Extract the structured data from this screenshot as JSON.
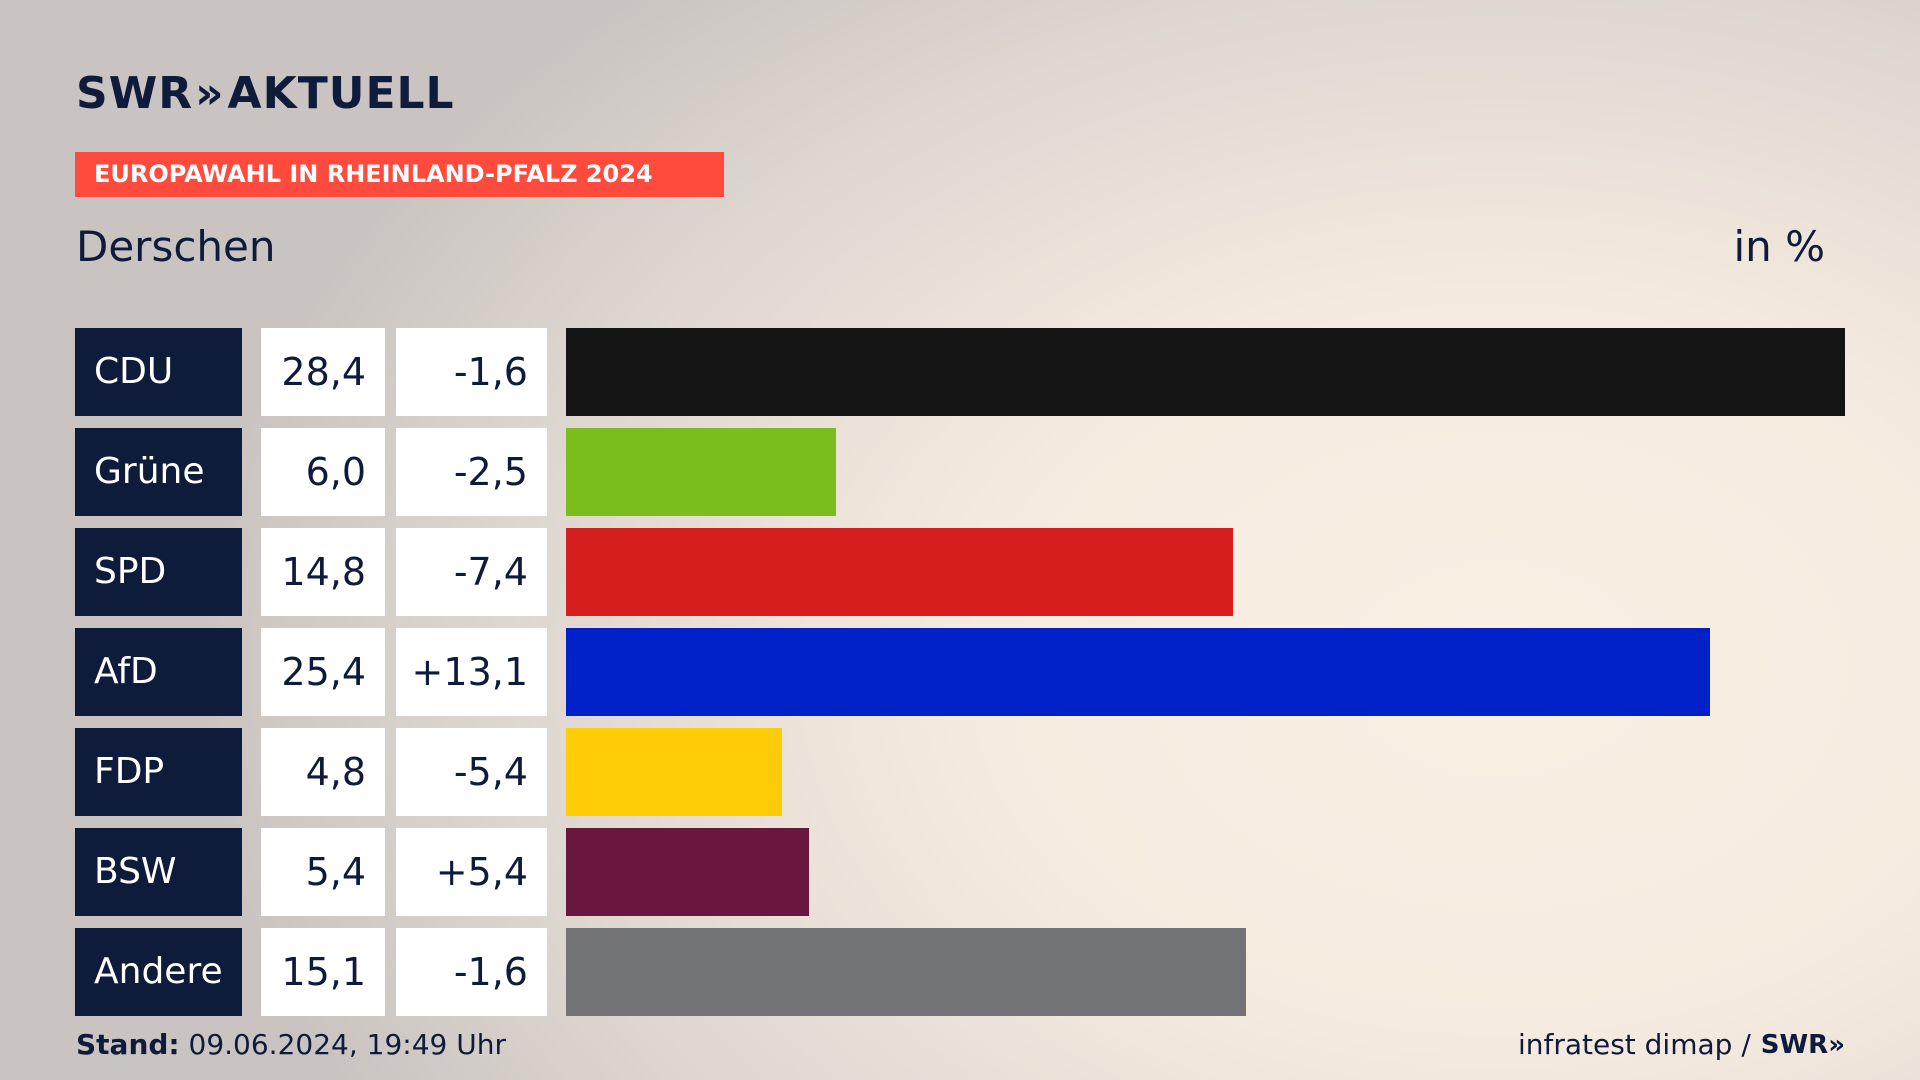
{
  "header": {
    "logo_text": "SWR",
    "logo_chevrons": "»",
    "logo_word": "AKTUELL",
    "banner": "EUROPAWAHL IN RHEINLAND-PFALZ 2024",
    "location": "Derschen",
    "unit": "in %"
  },
  "footer": {
    "stand_label": "Stand:",
    "stand_value": " 09.06.2024, 19:49 Uhr",
    "source": "infratest dimap /",
    "source_logo": "SWR»"
  },
  "colors": {
    "CDU": "#141414",
    "Grüne": "#7bbd1c",
    "SPD": "#d71f1f",
    "AfD": "#0021c8",
    "FDP": "#ffcd07",
    "BSW": "#6a1740",
    "Andere": "#727376"
  },
  "chart_data": {
    "type": "bar",
    "orientation": "horizontal",
    "title": "",
    "xlabel": "",
    "ylabel": "",
    "unit": "in %",
    "categories": [
      "CDU",
      "Grüne",
      "SPD",
      "AfD",
      "FDP",
      "BSW",
      "Andere"
    ],
    "values": [
      28.4,
      6.0,
      14.8,
      25.4,
      4.8,
      5.4,
      15.1
    ],
    "value_labels": [
      "28,4",
      "6,0",
      "14,8",
      "25,4",
      "4,8",
      "5,4",
      "15,1"
    ],
    "diff_labels": [
      "-1,6",
      "-2,5",
      "-7,4",
      "+13,1",
      "-5,4",
      "+5,4",
      "-1,6"
    ],
    "diffs": [
      -1.6,
      -2.5,
      -7.4,
      13.1,
      -5.4,
      5.4,
      -1.6
    ],
    "xlim": [
      0,
      28.4
    ],
    "grid": false,
    "legend": "none"
  }
}
